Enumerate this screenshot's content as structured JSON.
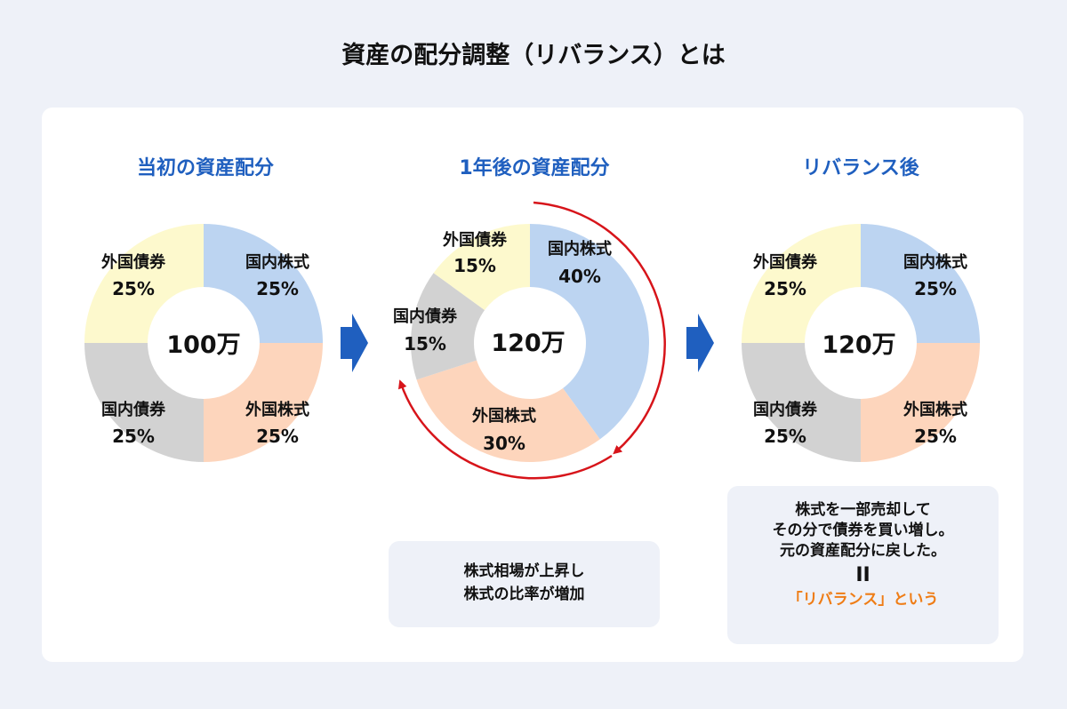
{
  "title": "資産の配分調整（リバランス）とは",
  "colors": {
    "domestic_stock": "#bcd4f1",
    "foreign_stock": "#fdd5bc",
    "domestic_bond": "#d2d2d2",
    "foreign_bond": "#fdf9cd",
    "heading": "#1f5fbf",
    "arrow": "#1f5fbf",
    "rotate_arrow": "#d7141a",
    "callout": "#ef7d16"
  },
  "columns": [
    {
      "heading": "当初の資産配分",
      "center": "100万",
      "segments": [
        {
          "label": "国内株式",
          "pct": "25%",
          "value": 25,
          "key": "domestic_stock"
        },
        {
          "label": "外国株式",
          "pct": "25%",
          "value": 25,
          "key": "foreign_stock"
        },
        {
          "label": "国内債券",
          "pct": "25%",
          "value": 25,
          "key": "domestic_bond"
        },
        {
          "label": "外国債券",
          "pct": "25%",
          "value": 25,
          "key": "foreign_bond"
        }
      ]
    },
    {
      "heading": "1年後の資産配分",
      "center": "120万",
      "segments": [
        {
          "label": "国内株式",
          "pct": "40%",
          "value": 40,
          "key": "domestic_stock"
        },
        {
          "label": "外国株式",
          "pct": "30%",
          "value": 30,
          "key": "foreign_stock"
        },
        {
          "label": "国内債券",
          "pct": "15%",
          "value": 15,
          "key": "domestic_bond"
        },
        {
          "label": "外国債券",
          "pct": "15%",
          "value": 15,
          "key": "foreign_bond"
        }
      ]
    },
    {
      "heading": "リバランス後",
      "center": "120万",
      "segments": [
        {
          "label": "国内株式",
          "pct": "25%",
          "value": 25,
          "key": "domestic_stock"
        },
        {
          "label": "外国株式",
          "pct": "25%",
          "value": 25,
          "key": "foreign_stock"
        },
        {
          "label": "国内債券",
          "pct": "25%",
          "value": 25,
          "key": "domestic_bond"
        },
        {
          "label": "外国債券",
          "pct": "25%",
          "value": 25,
          "key": "foreign_bond"
        }
      ]
    }
  ],
  "notes": {
    "middle": [
      "株式相場が上昇し",
      "株式の比率が増加"
    ],
    "right": [
      "株式を一部売却して",
      "その分で債券を買い増し。",
      "元の資産配分に戻した。"
    ],
    "equals": "II",
    "callout": "「リバランス」という"
  }
}
